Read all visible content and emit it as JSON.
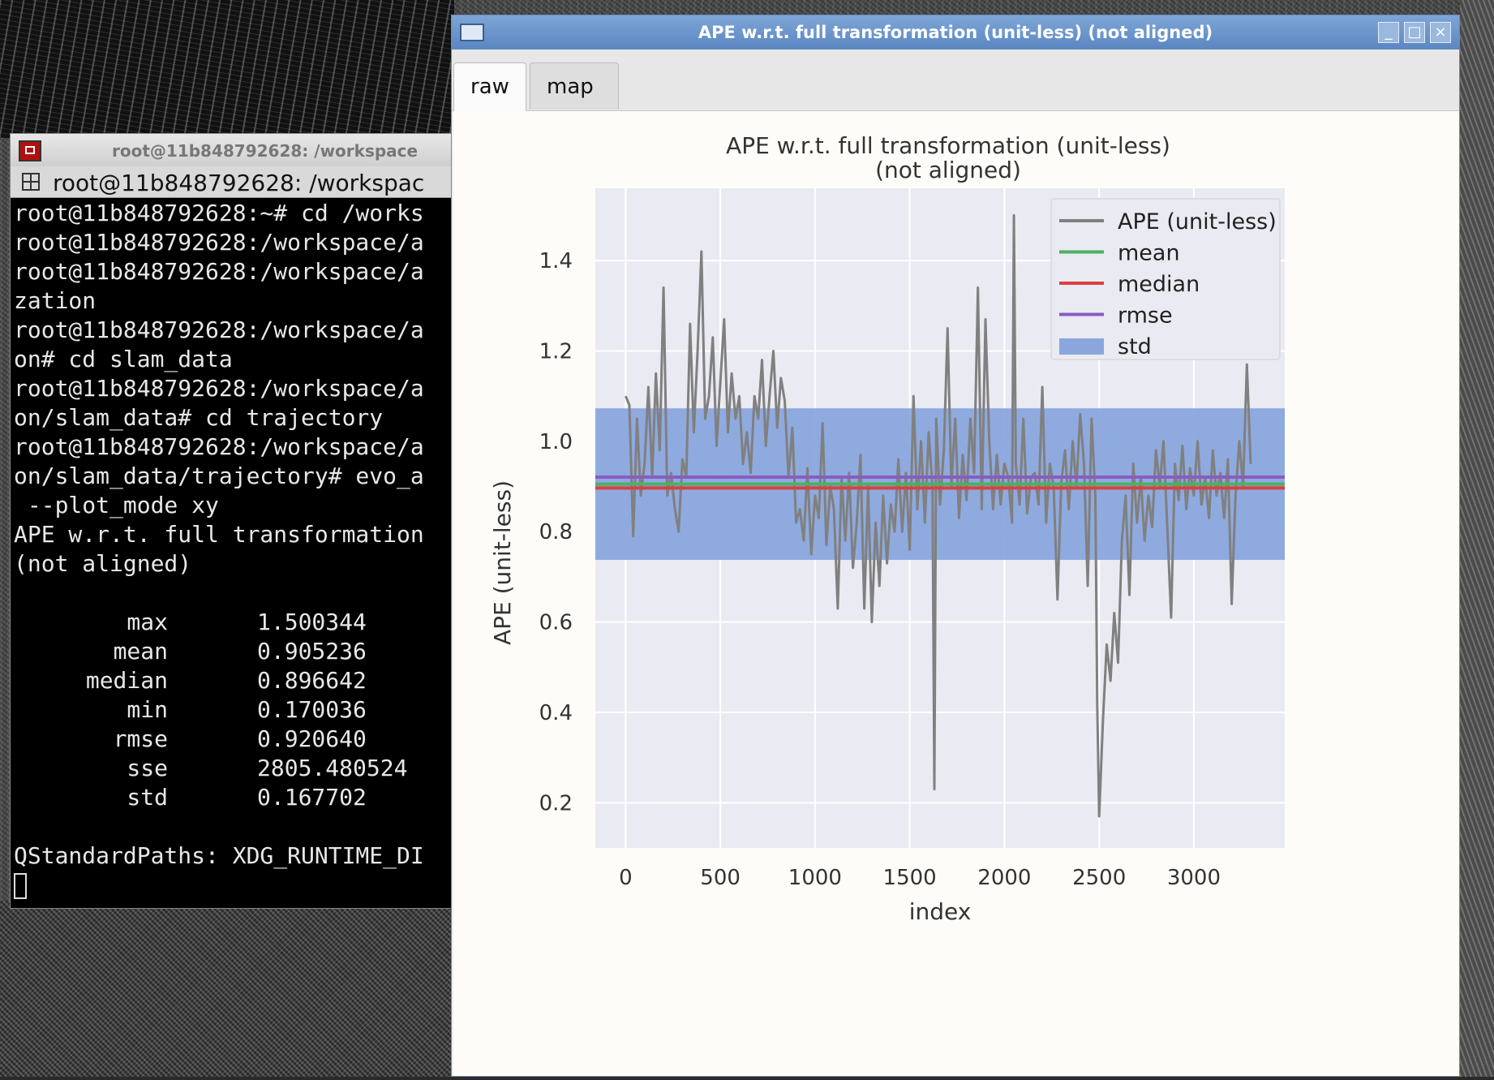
{
  "terminal": {
    "window_title": "root@11b848792628: /workspace",
    "tab_title": "root@11b848792628: /workspac",
    "lines": [
      "root@11b848792628:~# cd /works",
      "root@11b848792628:/workspace/a",
      "root@11b848792628:/workspace/a",
      "zation",
      "root@11b848792628:/workspace/a",
      "on# cd slam_data",
      "root@11b848792628:/workspace/a",
      "on/slam_data# cd trajectory",
      "root@11b848792628:/workspace/a",
      "on/slam_data/trajectory# evo_a",
      " --plot_mode xy",
      "APE w.r.t. full transformation",
      "(not aligned)",
      ""
    ],
    "stats": [
      {
        "key": "max",
        "value": "1.500344"
      },
      {
        "key": "mean",
        "value": "0.905236"
      },
      {
        "key": "median",
        "value": "0.896642"
      },
      {
        "key": "min",
        "value": "0.170036"
      },
      {
        "key": "rmse",
        "value": "0.920640"
      },
      {
        "key": "sse",
        "value": "2805.480524"
      },
      {
        "key": "std",
        "value": "0.167702"
      }
    ],
    "trailing_line": "QStandardPaths: XDG_RUNTIME_DI"
  },
  "plot_window": {
    "title": "APE w.r.t. full transformation (unit-less) (not aligned)",
    "tabs": [
      {
        "label": "raw",
        "active": true
      },
      {
        "label": "map",
        "active": false
      }
    ],
    "buttons": {
      "minimize": "_",
      "maximize": "□",
      "close": "×"
    }
  },
  "chart_data": {
    "type": "line",
    "title": "APE w.r.t. full transformation (unit-less)",
    "subtitle": "(not aligned)",
    "xlabel": "index",
    "ylabel": "APE (unit-less)",
    "xlim": [
      -160,
      3480
    ],
    "ylim": [
      0.1,
      1.56
    ],
    "xticks": [
      0,
      500,
      1000,
      1500,
      2000,
      2500,
      3000
    ],
    "yticks": [
      0.2,
      0.4,
      0.6,
      0.8,
      1.0,
      1.2,
      1.4
    ],
    "ytick_labels": [
      "0.2",
      "0.4",
      "0.6",
      "0.8",
      "1.0",
      "1.2",
      "1.4"
    ],
    "grid": true,
    "legend_position": "top-right",
    "legend": [
      {
        "label": "APE (unit-less)",
        "color": "#808080",
        "kind": "line"
      },
      {
        "label": "mean",
        "color": "#4daf63",
        "kind": "line"
      },
      {
        "label": "median",
        "color": "#d9413f",
        "kind": "line"
      },
      {
        "label": "rmse",
        "color": "#8a5cc2",
        "kind": "line"
      },
      {
        "label": "std",
        "color": "#8aa6dd",
        "kind": "patch"
      }
    ],
    "mean": 0.905236,
    "median": 0.896642,
    "rmse": 0.92064,
    "std": 0.167702,
    "ape_series": {
      "name": "APE (unit-less)",
      "x": [
        0,
        20,
        40,
        60,
        80,
        100,
        120,
        140,
        160,
        180,
        200,
        220,
        240,
        260,
        280,
        300,
        320,
        340,
        360,
        380,
        400,
        420,
        440,
        460,
        480,
        500,
        520,
        540,
        560,
        580,
        600,
        620,
        640,
        660,
        680,
        700,
        720,
        740,
        760,
        780,
        800,
        820,
        840,
        860,
        880,
        900,
        920,
        940,
        960,
        980,
        1000,
        1020,
        1040,
        1060,
        1080,
        1100,
        1120,
        1140,
        1160,
        1180,
        1200,
        1220,
        1240,
        1260,
        1280,
        1300,
        1320,
        1340,
        1360,
        1380,
        1400,
        1420,
        1440,
        1460,
        1480,
        1500,
        1520,
        1540,
        1560,
        1580,
        1600,
        1620,
        1630,
        1640,
        1660,
        1680,
        1700,
        1720,
        1740,
        1760,
        1780,
        1800,
        1820,
        1840,
        1860,
        1880,
        1900,
        1920,
        1940,
        1960,
        1980,
        2000,
        2020,
        2040,
        2050,
        2060,
        2080,
        2100,
        2120,
        2140,
        2160,
        2180,
        2200,
        2220,
        2240,
        2260,
        2280,
        2300,
        2320,
        2340,
        2360,
        2380,
        2400,
        2420,
        2440,
        2460,
        2480,
        2490,
        2500,
        2520,
        2540,
        2560,
        2580,
        2600,
        2620,
        2640,
        2660,
        2680,
        2700,
        2720,
        2740,
        2760,
        2780,
        2800,
        2820,
        2840,
        2860,
        2880,
        2900,
        2920,
        2940,
        2960,
        2980,
        3000,
        3020,
        3040,
        3060,
        3080,
        3100,
        3120,
        3140,
        3160,
        3180,
        3200,
        3220,
        3240,
        3260,
        3280,
        3300
      ],
      "y": [
        1.1,
        1.08,
        0.79,
        1.05,
        0.88,
        0.95,
        1.12,
        0.92,
        1.15,
        0.98,
        1.34,
        0.88,
        0.93,
        0.85,
        0.8,
        0.96,
        0.92,
        1.26,
        1.02,
        1.2,
        1.42,
        1.05,
        1.1,
        1.23,
        0.99,
        1.13,
        1.27,
        1.02,
        1.15,
        1.05,
        1.1,
        0.95,
        1.02,
        0.93,
        1.1,
        1.05,
        1.18,
        0.99,
        1.1,
        1.2,
        1.03,
        1.14,
        1.09,
        0.92,
        1.03,
        0.82,
        0.85,
        0.78,
        0.94,
        0.75,
        0.88,
        0.83,
        1.04,
        0.77,
        0.9,
        0.85,
        0.63,
        0.92,
        0.78,
        0.93,
        0.72,
        0.82,
        0.97,
        0.63,
        0.9,
        0.6,
        0.82,
        0.68,
        0.88,
        0.73,
        0.86,
        0.8,
        0.96,
        0.8,
        0.93,
        0.76,
        1.1,
        0.85,
        1.0,
        0.82,
        1.02,
        0.9,
        0.23,
        1.05,
        0.86,
        0.98,
        1.25,
        0.9,
        1.05,
        0.83,
        0.97,
        0.87,
        1.05,
        0.93,
        1.34,
        0.85,
        1.27,
        1.0,
        0.85,
        0.97,
        0.86,
        0.95,
        0.92,
        0.82,
        1.5,
        0.95,
        0.86,
        1.05,
        0.84,
        0.92,
        0.93,
        0.86,
        1.12,
        0.82,
        0.95,
        0.9,
        0.65,
        0.91,
        0.98,
        0.85,
        1.0,
        0.9,
        1.06,
        0.95,
        0.68,
        1.05,
        0.88,
        0.42,
        0.17,
        0.38,
        0.55,
        0.47,
        0.62,
        0.51,
        0.78,
        0.88,
        0.66,
        0.95,
        0.82,
        0.92,
        0.78,
        0.88,
        0.81,
        0.98,
        0.9,
        1.0,
        0.81,
        0.61,
        0.95,
        0.87,
        0.99,
        0.85,
        0.94,
        0.88,
        1.0,
        0.86,
        0.92,
        0.83,
        0.98,
        0.88,
        0.93,
        0.83,
        0.96,
        0.64,
        0.88,
        1.0,
        0.9,
        1.17,
        0.95
      ]
    }
  }
}
